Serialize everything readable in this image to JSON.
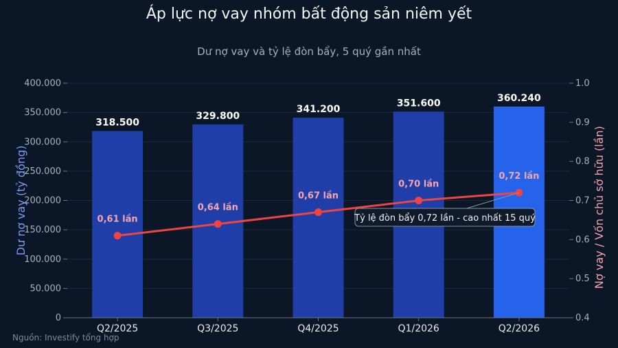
{
  "chart_data": {
    "type": "bar",
    "title": "Áp lực nợ vay nhóm bất động sản niêm yết",
    "subtitle": "Dư nợ vay và tỷ lệ đòn bẩy, 5 quý gần nhất",
    "source": "Nguồn: Investify tổng hợp",
    "categories": [
      "Q2/2025",
      "Q3/2025",
      "Q4/2025",
      "Q1/2026",
      "Q2/2026"
    ],
    "series": [
      {
        "name": "Dư nợ vay",
        "type": "bar",
        "axis": "left",
        "values": [
          318500,
          329800,
          341200,
          351600,
          360240
        ],
        "labels": [
          "318.500",
          "329.800",
          "341.200",
          "351.600",
          "360.240"
        ],
        "colors": [
          "#1f3ea8",
          "#1f3ea8",
          "#1f3ea8",
          "#1f3ea8",
          "#2563eb"
        ]
      },
      {
        "name": "Nợ vay / Vốn chủ sở hữu",
        "type": "line",
        "axis": "right",
        "values": [
          0.61,
          0.64,
          0.67,
          0.7,
          0.72
        ],
        "labels": [
          "0,61 lần",
          "0,64 lần",
          "0,67 lần",
          "0,70 lần",
          "0,72 lần"
        ],
        "color": "#ef4444"
      }
    ],
    "ylabel": "Dư nợ vay (tỷ đồng)",
    "ylabel_right": "Nợ vay / Vốn chủ sở hữu (lần)",
    "ylim": [
      0,
      400000
    ],
    "ylim_right": [
      0.4,
      1.0
    ],
    "yticks": [
      {
        "value": 0,
        "label": "0"
      },
      {
        "value": 50000,
        "label": "50.000"
      },
      {
        "value": 100000,
        "label": "100.000"
      },
      {
        "value": 150000,
        "label": "150.000"
      },
      {
        "value": 200000,
        "label": "200.000"
      },
      {
        "value": 250000,
        "label": "250.000"
      },
      {
        "value": 300000,
        "label": "300.000"
      },
      {
        "value": 350000,
        "label": "350.000"
      },
      {
        "value": 400000,
        "label": "400.000"
      }
    ],
    "yticks_right": [
      {
        "value": 0.4,
        "label": "0.4"
      },
      {
        "value": 0.5,
        "label": "0.5"
      },
      {
        "value": 0.6,
        "label": "0.6"
      },
      {
        "value": 0.7,
        "label": "0.7"
      },
      {
        "value": 0.8,
        "label": "0.8"
      },
      {
        "value": 0.9,
        "label": "0.9"
      },
      {
        "value": 1.0,
        "label": "1.0"
      }
    ],
    "grid": true,
    "annotation": {
      "text": "Tỷ lệ đòn bẩy 0,72 lần - cao nhất 15 quý",
      "category": "Q2/2026",
      "series": "Nợ vay / Vốn chủ sở hữu"
    }
  }
}
